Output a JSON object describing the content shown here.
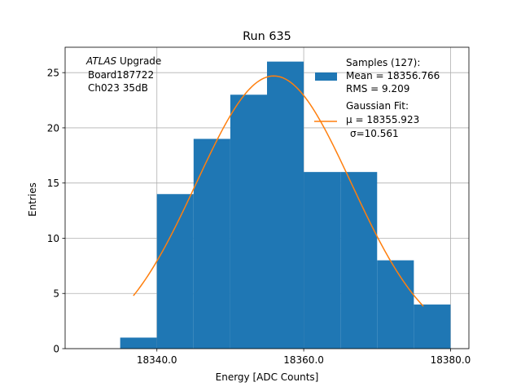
{
  "chart_data": {
    "type": "bar",
    "title": "Run 635",
    "xlabel": "Energy [ADC Counts]",
    "ylabel": "Entries",
    "xlim": [
      18327.5,
      18382.5
    ],
    "ylim": [
      0,
      27.3
    ],
    "grid": true,
    "x_ticks": [
      18340.0,
      18360.0,
      18380.0
    ],
    "x_tick_labels": [
      "18340.0",
      "18360.0",
      "18380.0"
    ],
    "y_ticks": [
      0,
      5,
      10,
      15,
      20,
      25
    ],
    "y_tick_labels": [
      "0",
      "5",
      "10",
      "15",
      "20",
      "25"
    ],
    "bin_edges": [
      18335,
      18340,
      18345,
      18350,
      18355,
      18360,
      18365,
      18370,
      18375,
      18380
    ],
    "values": [
      1,
      14,
      19,
      23,
      26,
      16,
      16,
      8,
      4
    ],
    "bar_color": "#1f77b4",
    "fit": {
      "name": "Gaussian Fit",
      "mu": 18355.923,
      "sigma": 10.561,
      "amplitude": 24.7,
      "x_range": [
        18336.8,
        18376.3
      ],
      "color": "#ff7f0e"
    },
    "annotation": {
      "lines": [
        "ATLAS Upgrade",
        "Board187722",
        "Ch023 35dB"
      ],
      "italic_word": "ATLAS",
      "rest_of_first_line": " Upgrade"
    },
    "legend": {
      "position": "top-right",
      "entries": [
        {
          "series": "Samples",
          "lines": [
            "Samples (127):",
            " Mean = 18356.766",
            " RMS = 9.209"
          ]
        },
        {
          "series": "Gaussian Fit",
          "lines": [
            "Gaussian Fit:",
            " μ = 18355.923",
            "σ=10.561"
          ]
        }
      ]
    }
  }
}
